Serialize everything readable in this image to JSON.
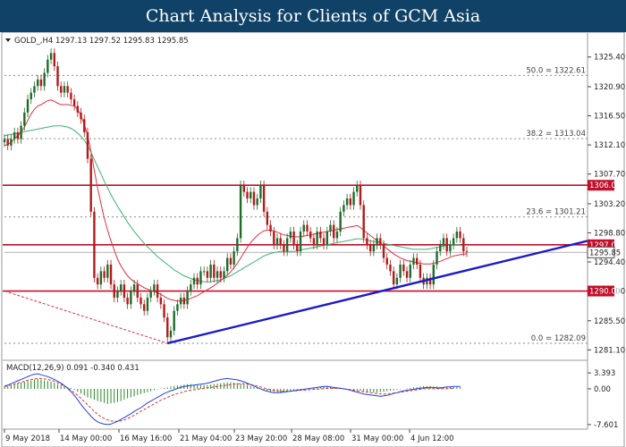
{
  "header": {
    "title": "Chart Analysis for Clients of GCM Asia"
  },
  "chart_info": {
    "symbol_label": "GOLD_,H4 1297.13 1297.52 1295.83 1295.85"
  },
  "macd_info": {
    "label": "MACD(12,26,9) 0.091 -0.340 0.431"
  },
  "colors": {
    "banner": "#0f4266",
    "bull": "#1f6b2a",
    "bear": "#b31a1a",
    "ma_fast": "#e03040",
    "ma_slow": "#3cb371",
    "level_line": "#c0102a",
    "trend_line": "#1a1acc",
    "macd_signal": "#e03030",
    "macd_line": "#2040e0",
    "histogram": "#2a8a2a"
  },
  "chart_data": {
    "type": "candlestick",
    "title": "",
    "price_axis_ticks": [
      "1325.40",
      "1320.90",
      "1316.50",
      "1312.10",
      "1307.70",
      "1303.20",
      "1298.80",
      "1294.40",
      "1290.00",
      "1285.50",
      "1281.10"
    ],
    "time_axis_ticks": [
      "9 May 2018",
      "14 May 00:00",
      "16 May 16:00",
      "21 May 04:00",
      "23 May 20:00",
      "28 May 08:00",
      "31 May 00:00",
      "4 Jun 12:00"
    ],
    "ylim": [
      1280.2,
      1327.8
    ],
    "horizontal_levels": [
      {
        "value": 1306.0,
        "label": "1306.00"
      },
      {
        "value": 1297.0,
        "label": "1297.00"
      },
      {
        "value": 1290.0,
        "label": "1290.00"
      }
    ],
    "current_price": {
      "value": 1295.85,
      "label": "1295.85"
    },
    "fibonacci": [
      {
        "label": "50.0 = 1322.61",
        "value": 1322.61
      },
      {
        "label": "38.2 = 1313.04",
        "value": 1313.04
      },
      {
        "label": "23.6 = 1301.21",
        "value": 1301.21
      },
      {
        "label": "0.0 = 1282.09",
        "value": 1282.09
      }
    ],
    "trendline": {
      "from": {
        "bar": 49,
        "price": 1282.1
      },
      "to": {
        "bar": 164,
        "price": 1296.2
      }
    },
    "ma_fast_dashed_start": {
      "bar": 0,
      "price": 1290.0
    },
    "close": [
      1313,
      1312,
      1313,
      1314,
      1313,
      1315,
      1317,
      1319,
      1320,
      1321,
      1322,
      1321,
      1323,
      1325,
      1326,
      1324,
      1321,
      1320,
      1321,
      1320,
      1319,
      1318,
      1317,
      1316,
      1314,
      1310,
      1302,
      1292,
      1291,
      1293,
      1292,
      1294,
      1291,
      1289,
      1290,
      1291,
      1289,
      1288,
      1290,
      1291,
      1289,
      1288,
      1287,
      1289,
      1290,
      1291,
      1289,
      1288,
      1286,
      1283,
      1284,
      1287,
      1288,
      1289,
      1288,
      1290,
      1291,
      1292,
      1291,
      1293,
      1293,
      1292,
      1294,
      1292,
      1293,
      1292,
      1293,
      1295,
      1294,
      1296,
      1298,
      1306,
      1305,
      1304,
      1305,
      1303,
      1304,
      1306,
      1302,
      1300,
      1299,
      1297,
      1298,
      1297,
      1296,
      1298,
      1299,
      1297,
      1296,
      1299,
      1300,
      1299,
      1298,
      1297,
      1299,
      1298,
      1297,
      1299,
      1300,
      1298,
      1299,
      1302,
      1303,
      1304,
      1303,
      1305,
      1306,
      1303,
      1298,
      1297,
      1296,
      1297,
      1298,
      1297,
      1295,
      1294,
      1293,
      1291,
      1292,
      1294,
      1293,
      1292,
      1294,
      1295,
      1294,
      1292,
      1291,
      1292,
      1291,
      1294,
      1296,
      1297,
      1298,
      1296,
      1297,
      1298,
      1299,
      1298,
      1296,
      1295.85
    ],
    "ma_fast": [
      1312,
      1312.2,
      1312.5,
      1313,
      1313.5,
      1314,
      1314.8,
      1315.8,
      1316.8,
      1317.5,
      1318,
      1318.2,
      1318.5,
      1318.8,
      1318.9,
      1318.7,
      1318.4,
      1318.2,
      1318.2,
      1318.2,
      1318.1,
      1318,
      1317.5,
      1316.5,
      1315.2,
      1313.5,
      1311.2,
      1308.3,
      1305.6,
      1303.2,
      1301,
      1299.2,
      1297.6,
      1296.2,
      1294.8,
      1293.8,
      1293,
      1292.3,
      1291.8,
      1291.4,
      1291.1,
      1290.8,
      1290.5,
      1290.3,
      1290.1,
      1289.9,
      1289.7,
      1289.5,
      1289.2,
      1288.9,
      1288.7,
      1288.6,
      1288.5,
      1288.5,
      1288.6,
      1288.7,
      1288.9,
      1289.1,
      1289.3,
      1289.6,
      1289.9,
      1290.2,
      1290.5,
      1290.8,
      1291.2,
      1291.6,
      1292,
      1292.4,
      1292.9,
      1293.5,
      1294.2,
      1295,
      1295.8,
      1296.6,
      1297.3,
      1297.9,
      1298.4,
      1298.8,
      1299.1,
      1299.2,
      1299.2,
      1299.1,
      1298.9,
      1298.7,
      1298.5,
      1298.4,
      1298.3,
      1298.2,
      1298.2,
      1298.2,
      1298.3,
      1298.4,
      1298.5,
      1298.6,
      1298.7,
      1298.8,
      1298.9,
      1299,
      1299.1,
      1299.2,
      1299.3,
      1299.4,
      1299.5,
      1299.6,
      1299.7,
      1299.8,
      1299.9,
      1299.6,
      1299.2,
      1298.8,
      1298.4,
      1298,
      1297.6,
      1297.2,
      1296.8,
      1296.4,
      1296,
      1295.6,
      1295.3,
      1295,
      1294.8,
      1294.6,
      1294.5,
      1294.4,
      1294.3,
      1294.2,
      1294.1,
      1294.1,
      1294.1,
      1294.2,
      1294.3,
      1294.5,
      1294.7,
      1294.9,
      1295.1,
      1295.3,
      1295.4,
      1295.5,
      1295.6,
      1295.6
    ],
    "ma_slow": [
      1313.5,
      1313.6,
      1313.7,
      1313.8,
      1313.9,
      1314,
      1314.1,
      1314.2,
      1314.3,
      1314.4,
      1314.5,
      1314.6,
      1314.7,
      1314.8,
      1314.9,
      1315,
      1315,
      1315,
      1314.9,
      1314.8,
      1314.6,
      1314.3,
      1313.9,
      1313.4,
      1312.8,
      1312,
      1311,
      1309.9,
      1308.8,
      1307.7,
      1306.6,
      1305.6,
      1304.6,
      1303.7,
      1302.8,
      1302,
      1301.2,
      1300.4,
      1299.7,
      1299,
      1298.4,
      1297.8,
      1297.2,
      1296.7,
      1296.2,
      1295.7,
      1295.2,
      1294.8,
      1294.4,
      1294,
      1293.6,
      1293.2,
      1292.9,
      1292.6,
      1292.3,
      1292.1,
      1291.9,
      1291.7,
      1291.6,
      1291.5,
      1291.4,
      1291.4,
      1291.4,
      1291.5,
      1291.6,
      1291.7,
      1291.9,
      1292.1,
      1292.3,
      1292.6,
      1292.9,
      1293.2,
      1293.5,
      1293.8,
      1294.1,
      1294.4,
      1294.7,
      1295,
      1295.3,
      1295.5,
      1295.7,
      1295.8,
      1295.9,
      1296,
      1296,
      1296,
      1296,
      1296,
      1296.1,
      1296.2,
      1296.3,
      1296.4,
      1296.5,
      1296.6,
      1296.7,
      1296.8,
      1296.9,
      1297,
      1297.1,
      1297.2,
      1297.3,
      1297.4,
      1297.5,
      1297.6,
      1297.7,
      1297.8,
      1297.9,
      1297.9,
      1297.8,
      1297.7,
      1297.6,
      1297.5,
      1297.4,
      1297.3,
      1297.2,
      1297.1,
      1297,
      1296.9,
      1296.8,
      1296.7,
      1296.6,
      1296.5,
      1296.4,
      1296.3,
      1296.3,
      1296.3,
      1296.3,
      1296.3,
      1296.4,
      1296.5,
      1296.6,
      1296.7,
      1296.8,
      1296.9,
      1297,
      1297,
      1297,
      1297
    ],
    "macd": {
      "axis_ticks": [
        "3.393",
        "0.00",
        "-7.601"
      ],
      "ylim": [
        -7.8,
        3.6
      ],
      "histogram": [
        0.5,
        0.6,
        0.8,
        1,
        1.2,
        1.3,
        1.5,
        1.6,
        1.8,
        2,
        2.1,
        2,
        1.8,
        1.7,
        1.5,
        1.3,
        1,
        0.8,
        0.6,
        0.4,
        0.2,
        -0.2,
        -0.6,
        -1,
        -1.4,
        -1.8,
        -2,
        -2.3,
        -2.6,
        -2.8,
        -3,
        -3.2,
        -3.1,
        -3,
        -2.8,
        -2.6,
        -2.3,
        -2,
        -1.8,
        -1.6,
        -1.3,
        -1.1,
        -0.9,
        -0.7,
        -0.5,
        -0.3,
        -0.1,
        0.1,
        0.2,
        0.3,
        0.5,
        0.6,
        0.7,
        0.8,
        0.9,
        1,
        1,
        0.9,
        0.9,
        0.8,
        0.8,
        0.8,
        0.9,
        1,
        1.1,
        1.2,
        1.3,
        1.4,
        1.4,
        1.3,
        1.2,
        1.1,
        1,
        0.8,
        0.6,
        0.4,
        0.2,
        0,
        -0.2,
        -0.4,
        -0.6,
        -0.7,
        -0.8,
        -0.8,
        -0.7,
        -0.6,
        -0.5,
        -0.4,
        -0.3,
        -0.2,
        -0.1,
        0,
        0.1,
        0.2,
        0.3,
        0.4,
        0.5,
        0.6,
        0.5,
        0.4,
        0.3,
        0.2,
        0.1,
        0,
        -0.1,
        -0.2,
        -0.3,
        -0.4,
        -0.5,
        -0.6,
        -0.7,
        -0.8,
        -0.8,
        -0.7,
        -0.6,
        -0.5,
        -0.4,
        -0.3,
        -0.2,
        -0.1,
        0,
        0.1,
        0.2,
        0.3,
        0.4,
        0.5,
        0.6,
        0.6,
        0.6,
        0.5,
        0.5,
        0.4,
        0.4,
        0.4,
        0.4,
        0.4,
        0.4,
        0.4
      ],
      "signal": [
        0.5,
        0.6,
        0.8,
        1,
        1.2,
        1.4,
        1.6,
        1.8,
        2,
        2.1,
        2.2,
        2.2,
        2.1,
        2,
        1.8,
        1.6,
        1.3,
        1,
        0.6,
        0.2,
        -0.3,
        -0.8,
        -1.4,
        -2,
        -2.7,
        -3.4,
        -4.1,
        -4.8,
        -5.4,
        -5.9,
        -6.3,
        -6.6,
        -6.8,
        -6.9,
        -6.9,
        -6.8,
        -6.6,
        -6.3,
        -6,
        -5.6,
        -5.2,
        -4.8,
        -4.4,
        -4,
        -3.6,
        -3.2,
        -2.8,
        -2.4,
        -2.1,
        -1.8,
        -1.5,
        -1.2,
        -1,
        -0.8,
        -0.6,
        -0.4,
        -0.3,
        -0.2,
        -0.1,
        0,
        0.1,
        0.2,
        0.3,
        0.4,
        0.5,
        0.6,
        0.7,
        0.8,
        0.9,
        1,
        1.1,
        1.1,
        1.1,
        1,
        0.9,
        0.8,
        0.6,
        0.4,
        0.2,
        0,
        -0.2,
        -0.3,
        -0.4,
        -0.5,
        -0.5,
        -0.5,
        -0.5,
        -0.4,
        -0.4,
        -0.3,
        -0.3,
        -0.2,
        -0.2,
        -0.1,
        -0.1,
        0,
        0,
        0.1,
        0.1,
        0.1,
        0.1,
        0.1,
        0,
        -0.1,
        -0.2,
        -0.3,
        -0.4,
        -0.5,
        -0.6,
        -0.7,
        -0.8,
        -0.9,
        -1,
        -1.1,
        -1.1,
        -1.1,
        -1,
        -0.9,
        -0.8,
        -0.7,
        -0.6,
        -0.5,
        -0.4,
        -0.3,
        -0.2,
        -0.1,
        0,
        0,
        0,
        0,
        0,
        0,
        0,
        0,
        0.1,
        0.1
      ],
      "macd": [
        0.6,
        0.8,
        1.1,
        1.4,
        1.7,
        2,
        2.3,
        2.6,
        2.9,
        3.1,
        3.2,
        3,
        2.8,
        2.6,
        2.3,
        2,
        1.6,
        1.2,
        0.7,
        0.1,
        -0.6,
        -1.4,
        -2.3,
        -3.3,
        -4.2,
        -5,
        -5.8,
        -6.5,
        -7,
        -7.3,
        -7.5,
        -7.6,
        -7.5,
        -7.2,
        -6.9,
        -6.5,
        -6.1,
        -5.7,
        -5.3,
        -4.8,
        -4.4,
        -4,
        -3.5,
        -3,
        -2.6,
        -2.2,
        -1.8,
        -1.4,
        -1,
        -0.7,
        -0.4,
        -0.2,
        0.1,
        0.3,
        0.5,
        0.6,
        0.7,
        0.8,
        0.9,
        1,
        1.1,
        1.2,
        1.4,
        1.6,
        1.8,
        2,
        2.1,
        2.2,
        2.1,
        2,
        1.9,
        1.7,
        1.5,
        1.2,
        0.9,
        0.6,
        0.3,
        0,
        -0.3,
        -0.5,
        -0.7,
        -0.8,
        -0.8,
        -0.8,
        -0.7,
        -0.6,
        -0.5,
        -0.4,
        -0.3,
        -0.2,
        -0.1,
        0,
        0.1,
        0.2,
        0.3,
        0.4,
        0.5,
        0.5,
        0.4,
        0.3,
        0.2,
        0.1,
        0,
        -0.1,
        -0.3,
        -0.5,
        -0.7,
        -0.9,
        -1.1,
        -1.2,
        -1.3,
        -1.4,
        -1.5,
        -1.6,
        -1.5,
        -1.4,
        -1.2,
        -1,
        -0.8,
        -0.6,
        -0.4,
        -0.3,
        -0.2,
        -0.1,
        0,
        0.1,
        0.2,
        0.3,
        0.3,
        0.3,
        0.2,
        0.2,
        0.3,
        0.4,
        0.4,
        0.5,
        0.5,
        0.5
      ]
    }
  }
}
